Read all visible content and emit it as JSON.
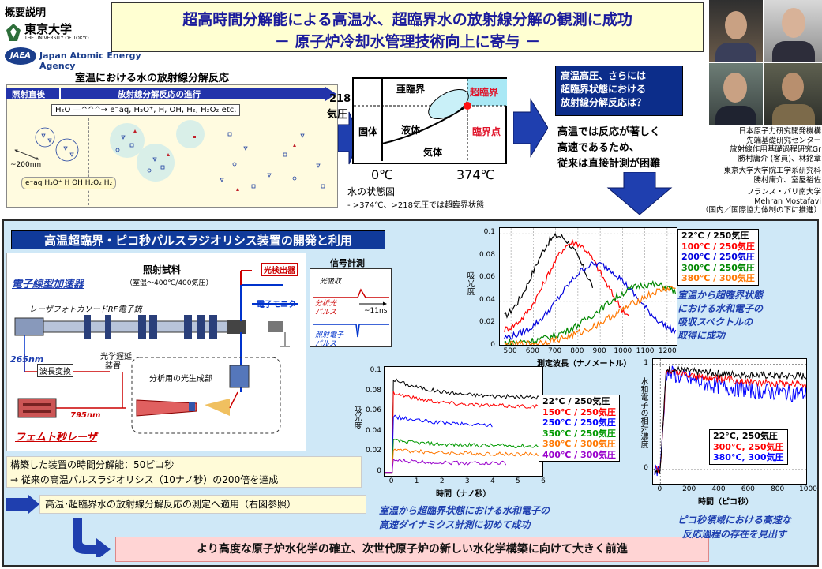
{
  "header": {
    "overview_label": "概要説明",
    "logo_tokyo_jp": "東京大学",
    "logo_tokyo_en": "THE UNIVERSITY OF TOKYO",
    "logo_jaea_mark": "JAEA",
    "logo_jaea_text": "Japan Atomic Energy Agency",
    "title_line1": "超高時間分解能による高温水、超臨界水の放射線分解の観測に成功",
    "title_line2": "－ 原子炉冷却水管理技術向上に寄与 －"
  },
  "radiolysis": {
    "title": "室温における水の放射線分解反応",
    "arrow_left": "照射直後",
    "arrow_right": "放射線分解反応の進行",
    "equation": "H₂O ―^^^→ e⁻aq, H₃O⁺, H, OH, H₂, H₂O₂  etc.",
    "scale": "~200nm",
    "legend": "e⁻aq  H₃O⁺  H  OH  H₂O₂  H₂"
  },
  "phase_diagram": {
    "ylabel_num": "218",
    "ylabel_unit": "気圧",
    "region_subcritical": "亜臨界",
    "region_supercritical": "超臨界",
    "region_solid": "固体",
    "region_liquid": "液体",
    "region_gas": "気体",
    "critical_point": "臨界点",
    "x_tick1": "0℃",
    "x_tick2": "374℃",
    "caption": "水の状態図",
    "note": "- >374℃、>218気圧では超臨界状態"
  },
  "question": {
    "box_line1": "高温高圧、さらには",
    "box_line2": "超臨界状態における",
    "box_line3": "放射線分解反応は？",
    "text1": "高温では反応が著しく",
    "text2": "高速であるため、",
    "text3": "従来は直接計測が困難"
  },
  "people": {
    "affil1": "日本原子力研究開発機構",
    "affil2": "先端基礎研究センター",
    "affil3": "放射線作用基礎過程研究Gr",
    "names1": "勝村庸介 (客員)、林銘章",
    "affil4": "東京大学大学院工学系研究科",
    "names2": "勝村庸介、室屋裕佐",
    "affil5": "フランス・パリ南大学",
    "names3": "Mehran Mostafavi",
    "note": "（国内／国際協力体制の下に推進）"
  },
  "apparatus": {
    "section_title": "高温超臨界・ピコ秒パルスラジオリシス装置の開発と利用",
    "accelerator": "電子線型加速器",
    "gun": "レーザフォトカソードRF電子銃",
    "sample": "照射試料",
    "sample_cond": "（室温～400℃/400気圧）",
    "detector": "光検出器",
    "signal": "信号計測",
    "absorption": "光吸収",
    "analysis_pulse1": "分析光",
    "analysis_pulse2": "パルス",
    "delay": "~11ns",
    "irr_pulse1": "照射電子",
    "irr_pulse2": "パルス",
    "electron_monitor": "電子モニタ",
    "wl266": "265nm",
    "wl_conv": "波長変換",
    "optical_delay1": "光学遅延",
    "optical_delay2": "装置",
    "analysis_light_gen": "分析用の光生成部",
    "wl795": "795nm",
    "femto_laser": "フェムト秒レーザ"
  },
  "results": {
    "time_res": "構築した装置の時間分解能：50ピコ秒",
    "time_res2": "→ 従来の高温パルスラジオリシス（10ナノ秒）の200倍を達成",
    "application": "高温･超臨界水の放射線分解反応の測定へ適用（右図参照）",
    "conclusion": "より高度な原子炉水化学の確立、次世代原子炉の新しい水化学構築に向けて大きく前進",
    "spectrum_caption1": "室温から超臨界状態",
    "spectrum_caption2": "における水和電子の",
    "spectrum_caption3": "吸収スペクトルの",
    "spectrum_caption4": "取得に成功",
    "ns_caption1": "室温から超臨界状態における水和電子の",
    "ns_caption2": "高速ダイナミクス計測に初めて成功",
    "ps_caption1": "ピコ秒領域における高速な",
    "ps_caption2": "反応過程の存在を見出す"
  },
  "chart_data": [
    {
      "type": "line",
      "xlabel": "測定波長（ナノメートル）",
      "ylabel": "吸光度",
      "xlim": [
        450,
        1250
      ],
      "ylim": [
        0,
        0.105
      ],
      "x_ticks": [
        500,
        600,
        700,
        800,
        900,
        1000,
        1100,
        1200
      ],
      "y_ticks": [
        "0",
        "0.02",
        "0.04",
        "0.06",
        "0.08",
        "0.1"
      ],
      "series": [
        {
          "name": "22℃ / 250気圧",
          "color": "#000000",
          "peak_x": 710,
          "peak_y": 0.098,
          "width": 170,
          "end_x": 870,
          "start_y": 0.02
        },
        {
          "name": "100℃ / 250気圧",
          "color": "#ff0000",
          "peak_x": 780,
          "peak_y": 0.092,
          "width": 190,
          "end_x": 1030,
          "start_y": 0.012
        },
        {
          "name": "200℃ / 250気圧",
          "color": "#0000dd",
          "peak_x": 880,
          "peak_y": 0.073,
          "width": 240,
          "end_x": 1240,
          "start_y": 0.006
        },
        {
          "name": "300℃ / 250気圧",
          "color": "#008800",
          "peak_x": 1120,
          "peak_y": 0.055,
          "width": 330,
          "end_x": 1240,
          "start_y": 0.003
        },
        {
          "name": "380℃ / 300気圧",
          "color": "#ff7700",
          "peak_x": 1250,
          "peak_y": 0.052,
          "width": 400,
          "end_x": 1240,
          "start_y": 0.001
        }
      ]
    },
    {
      "type": "line",
      "xlabel": "時間（ナノ秒）",
      "ylabel": "吸光度",
      "xlim": [
        -0.3,
        6
      ],
      "ylim": [
        -0.005,
        0.105
      ],
      "x_ticks": [
        0,
        1,
        2,
        3,
        4,
        5,
        6
      ],
      "y_ticks": [
        "0",
        "0.02",
        "0.04",
        "0.06",
        "0.08",
        "0.1"
      ],
      "series": [
        {
          "name": "22℃ / 250気圧",
          "color": "#000000",
          "start": 0.093,
          "end": 0.074,
          "t_end": 6.0
        },
        {
          "name": "150℃ / 250気圧",
          "color": "#ff0000",
          "start": 0.08,
          "end": 0.065,
          "t_end": 6.0
        },
        {
          "name": "250℃ / 250気圧",
          "color": "#0000ff",
          "start": 0.056,
          "end": 0.046,
          "t_end": 4.0
        },
        {
          "name": "350℃ / 250気圧",
          "color": "#009900",
          "start": 0.032,
          "end": 0.026,
          "t_end": 6.0
        },
        {
          "name": "380℃ / 300気圧",
          "color": "#ff7700",
          "start": 0.023,
          "end": 0.018,
          "t_end": 6.0
        },
        {
          "name": "400℃ / 300気圧",
          "color": "#9900cc",
          "start": 0.012,
          "end": 0.009,
          "t_end": 4.5
        }
      ]
    },
    {
      "type": "line",
      "xlabel": "時間（ピコ秒）",
      "ylabel": "水和電子の相対濃度",
      "xlim": [
        -50,
        1000
      ],
      "ylim": [
        -0.15,
        1.05
      ],
      "x_ticks": [
        0,
        200,
        400,
        600,
        800,
        1000
      ],
      "y_ticks": [
        "0",
        "1"
      ],
      "series": [
        {
          "name": "22°C, 250気圧",
          "color": "#000000",
          "start": 0.96,
          "end": 0.88
        },
        {
          "name": "300°C, 250気圧",
          "color": "#ff0000",
          "start": 0.95,
          "end": 0.8
        },
        {
          "name": "380°C, 300気圧",
          "color": "#0000ff",
          "start": 0.93,
          "end": 0.7
        }
      ]
    }
  ]
}
